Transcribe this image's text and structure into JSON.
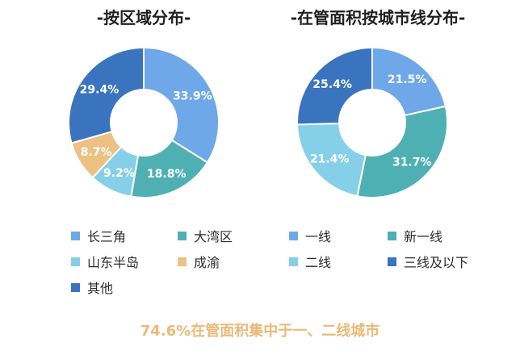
{
  "chart_data": [
    {
      "type": "pie",
      "title": "-按区域分布-",
      "categories": [
        "长三角",
        "大湾区",
        "山东半岛",
        "成渝",
        "其他"
      ],
      "values": [
        33.9,
        18.8,
        9.2,
        8.7,
        29.4
      ],
      "value_labels": [
        "33.9%",
        "18.8%",
        "9.2%",
        "8.7%",
        "29.4%"
      ],
      "colors": [
        "#6ea8e8",
        "#4fb0b4",
        "#86cfe8",
        "#edc084",
        "#3a74bf"
      ]
    },
    {
      "type": "pie",
      "title": "-在管面积按城市线分布-",
      "categories": [
        "一线",
        "新一线",
        "二线",
        "三线及以下"
      ],
      "values": [
        21.5,
        31.7,
        21.4,
        25.4
      ],
      "value_labels": [
        "21.5%",
        "31.7%",
        "21.4%",
        "25.4%"
      ],
      "colors": [
        "#6ea8e8",
        "#4fb0b4",
        "#86cfe8",
        "#3a74bf"
      ]
    }
  ],
  "footer_note": "74.6%在管面积集中于一、二线城市"
}
